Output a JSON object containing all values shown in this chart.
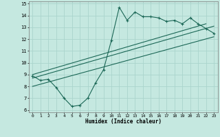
{
  "title": "",
  "xlabel": "Humidex (Indice chaleur)",
  "xlim": [
    -0.5,
    23.5
  ],
  "ylim": [
    5.8,
    15.2
  ],
  "yticks": [
    6,
    7,
    8,
    9,
    10,
    11,
    12,
    13,
    14,
    15
  ],
  "xticks": [
    0,
    1,
    2,
    3,
    4,
    5,
    6,
    7,
    8,
    9,
    10,
    11,
    12,
    13,
    14,
    15,
    16,
    17,
    18,
    19,
    20,
    21,
    22,
    23
  ],
  "bg_color": "#c5e8e0",
  "grid_color": "#aad4cc",
  "line_color": "#1a6655",
  "main_x": [
    0,
    1,
    2,
    3,
    4,
    5,
    6,
    7,
    8,
    9,
    10,
    11,
    12,
    13,
    14,
    15,
    16,
    17,
    18,
    19,
    20,
    21,
    22,
    23
  ],
  "main_y": [
    8.9,
    8.5,
    8.6,
    7.9,
    7.0,
    6.3,
    6.4,
    7.0,
    8.3,
    9.4,
    11.9,
    14.7,
    13.6,
    14.3,
    13.9,
    13.9,
    13.8,
    13.5,
    13.6,
    13.3,
    13.8,
    13.3,
    12.9,
    12.5
  ],
  "trend1_x": [
    0,
    22
  ],
  "trend1_y": [
    9.0,
    13.3
  ],
  "trend2_x": [
    0,
    23
  ],
  "trend2_y": [
    9.0,
    13.3
  ],
  "trend3_x": [
    0,
    23
  ],
  "trend3_y": [
    8.0,
    12.2
  ]
}
